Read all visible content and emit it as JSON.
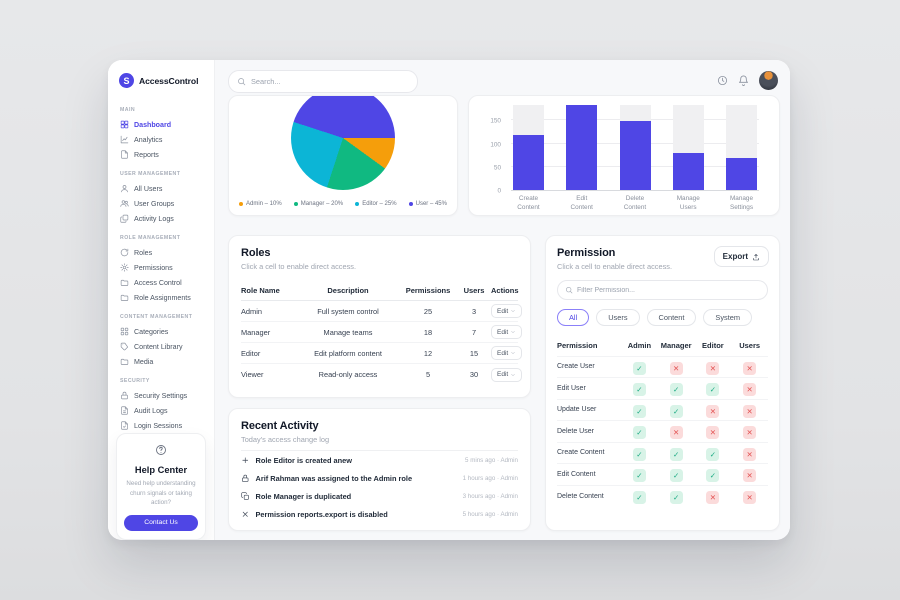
{
  "app": {
    "name": "AccessControl",
    "logo_letter": "S"
  },
  "topbar": {
    "search_placeholder": "Search...",
    "icons": [
      "clock-icon",
      "bell-icon"
    ]
  },
  "sidebar": {
    "sections": [
      {
        "heading": "MAIN",
        "items": [
          {
            "label": "Dashboard",
            "icon": "dashboard-icon",
            "active": true
          },
          {
            "label": "Analytics",
            "icon": "analytics-icon",
            "active": false
          },
          {
            "label": "Reports",
            "icon": "reports-icon",
            "active": false
          }
        ]
      },
      {
        "heading": "USER MANAGEMENT",
        "items": [
          {
            "label": "All Users",
            "icon": "all-users-icon",
            "active": false
          },
          {
            "label": "User Groups",
            "icon": "user-groups-icon",
            "active": false
          },
          {
            "label": "Activity Logs",
            "icon": "activity-logs-icon",
            "active": false
          }
        ]
      },
      {
        "heading": "ROLE MANAGEMENT",
        "items": [
          {
            "label": "Roles",
            "icon": "roles-icon",
            "active": false
          },
          {
            "label": "Permissions",
            "icon": "permissions-icon",
            "active": false
          },
          {
            "label": "Access Control",
            "icon": "access-control-icon",
            "active": false
          },
          {
            "label": "Role Assignments",
            "icon": "role-assignments-icon",
            "active": false
          }
        ]
      },
      {
        "heading": "CONTENT MANAGEMENT",
        "items": [
          {
            "label": "Categories",
            "icon": "categories-icon",
            "active": false
          },
          {
            "label": "Content Library",
            "icon": "content-library-icon",
            "active": false
          },
          {
            "label": "Media",
            "icon": "media-icon",
            "active": false
          }
        ]
      },
      {
        "heading": "SECURITY",
        "items": [
          {
            "label": "Security Settings",
            "icon": "security-settings-icon",
            "active": false
          },
          {
            "label": "Audit Logs",
            "icon": "audit-logs-icon",
            "active": false
          },
          {
            "label": "Login Sessions",
            "icon": "login-sessions-icon",
            "active": false
          }
        ]
      }
    ],
    "help": {
      "title": "Help Center",
      "text": "Need help understanding churn signals or taking action?",
      "button_label": "Contact Us"
    }
  },
  "chart_data": [
    {
      "type": "pie",
      "labels": [
        "Admin",
        "Manager",
        "Editor",
        "User"
      ],
      "values": [
        10,
        20,
        25,
        45
      ],
      "colors": [
        "#F59E0B",
        "#10B981",
        "#0CB5D6",
        "#4F46E5"
      ],
      "legend": [
        "Admin – 10%",
        "Manager – 20%",
        "Editor – 25%",
        "User – 45%"
      ],
      "legend_position": "bottom",
      "start_angle_deg": 90
    },
    {
      "type": "bar",
      "categories": [
        "Create Content",
        "Edit Content",
        "Delete Content",
        "Manage Users",
        "Manage Settings"
      ],
      "values": [
        120,
        185,
        150,
        80,
        70
      ],
      "yticks": [
        0,
        50,
        100,
        150
      ],
      "ylim": [
        0,
        185
      ],
      "bar_color": "#4F46E5",
      "track_color": "#F0F0F2",
      "grid": true
    }
  ],
  "roles": {
    "title": "Roles",
    "subtitle": "Click a cell to enable direct access.",
    "columns": [
      "Role Name",
      "Description",
      "Permissions",
      "Users",
      "Actions"
    ],
    "rows": [
      {
        "role": "Admin",
        "description": "Full system control",
        "permissions": "25",
        "users": "3",
        "action": "Edit"
      },
      {
        "role": "Manager",
        "description": "Manage teams",
        "permissions": "18",
        "users": "7",
        "action": "Edit"
      },
      {
        "role": "Editor",
        "description": "Edit platform content",
        "permissions": "12",
        "users": "15",
        "action": "Edit"
      },
      {
        "role": "Viewer",
        "description": "Read-only access",
        "permissions": "5",
        "users": "30",
        "action": "Edit"
      }
    ]
  },
  "permission": {
    "title": "Permission",
    "subtitle": "Click a cell to enable direct access.",
    "export_label": "Export",
    "filter_placeholder": "Filter Permission...",
    "filters": [
      {
        "label": "All",
        "active": true
      },
      {
        "label": "Users",
        "active": false
      },
      {
        "label": "Content",
        "active": false
      },
      {
        "label": "System",
        "active": false
      }
    ],
    "matrix": {
      "columns": [
        "Permission",
        "Admin",
        "Manager",
        "Editor",
        "Users"
      ],
      "rows": [
        {
          "label": "Create User",
          "access": [
            true,
            false,
            false,
            false
          ]
        },
        {
          "label": "Edit User",
          "access": [
            true,
            true,
            true,
            false
          ]
        },
        {
          "label": "Update User",
          "access": [
            true,
            true,
            false,
            false
          ]
        },
        {
          "label": "Delete User",
          "access": [
            true,
            false,
            false,
            false
          ]
        },
        {
          "label": "Create Content",
          "access": [
            true,
            true,
            true,
            false
          ]
        },
        {
          "label": "Edit Content",
          "access": [
            true,
            true,
            true,
            false
          ]
        },
        {
          "label": "Delete Content",
          "access": [
            true,
            true,
            false,
            false
          ]
        }
      ]
    }
  },
  "activity": {
    "title": "Recent Activity",
    "subtitle": "Today's access change log",
    "items": [
      {
        "icon": "plus-icon",
        "text": "Role Editor is created anew",
        "meta": "5 mins ago · Admin"
      },
      {
        "icon": "lock-icon",
        "text": "Arif Rahman was assigned to the Admin role",
        "meta": "1 hours ago · Admin"
      },
      {
        "icon": "copy-icon",
        "text": "Role Manager is duplicated",
        "meta": "3 hours ago · Admin"
      },
      {
        "icon": "x-icon",
        "text": "Permission reports.export is disabled",
        "meta": "5 hours ago · Admin"
      }
    ]
  },
  "colors": {
    "accent": "#4F46E5",
    "allow_bg": "#D8F3E7",
    "allow_fg": "#17A981",
    "deny_bg": "#FBDBDB",
    "deny_fg": "#E35454",
    "page_bg": "#E3E4E6",
    "content_bg": "#F7F8FA",
    "card_border": "#EDEEF0"
  },
  "glyphs": {
    "allow": "✓",
    "deny": "✕"
  }
}
